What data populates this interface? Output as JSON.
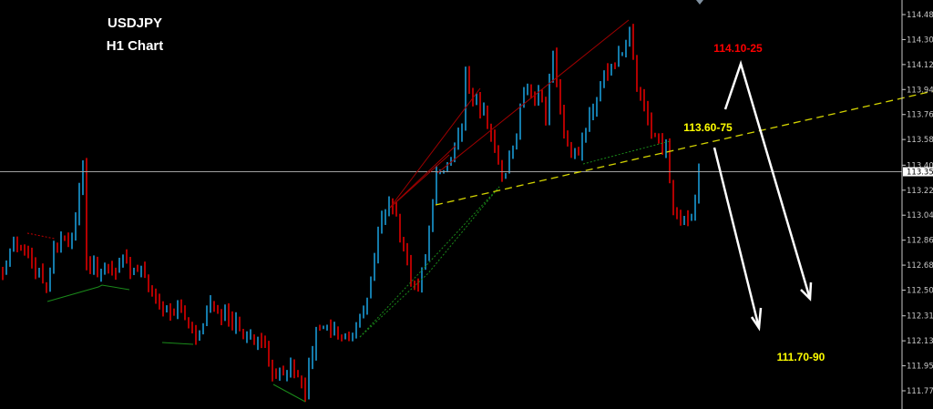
{
  "chart_data": {
    "type": "candlestick",
    "title": "USDJPY",
    "subtitle": "H1 Chart",
    "symbol": "USDJPY",
    "timeframe": "H1",
    "ylim": [
      111.7,
      114.55
    ],
    "y_ticks": [
      "114.485",
      "114.305",
      "114.125",
      "113.945",
      "113.765",
      "113.585",
      "113.400",
      "113.220",
      "113.040",
      "112.860",
      "112.680",
      "112.500",
      "112.315",
      "112.135",
      "111.955",
      "111.775"
    ],
    "current_price": "113.353",
    "bar_count": 192,
    "key_closes": [
      [
        0,
        112.62
      ],
      [
        3,
        112.88
      ],
      [
        7,
        112.75
      ],
      [
        12,
        112.49
      ],
      [
        14,
        112.82
      ],
      [
        18,
        112.85
      ],
      [
        20,
        113.02
      ],
      [
        22,
        113.41
      ],
      [
        23,
        112.69
      ],
      [
        27,
        112.65
      ],
      [
        32,
        112.69
      ],
      [
        37,
        112.65
      ],
      [
        39,
        112.59
      ],
      [
        42,
        112.42
      ],
      [
        44,
        112.36
      ],
      [
        49,
        112.36
      ],
      [
        53,
        112.16
      ],
      [
        57,
        112.42
      ],
      [
        62,
        112.29
      ],
      [
        67,
        112.16
      ],
      [
        72,
        112.1
      ],
      [
        74,
        111.9
      ],
      [
        79,
        111.97
      ],
      [
        83,
        111.74
      ],
      [
        86,
        112.23
      ],
      [
        89,
        112.23
      ],
      [
        93,
        112.16
      ],
      [
        97,
        112.23
      ],
      [
        99,
        112.36
      ],
      [
        102,
        112.75
      ],
      [
        104,
        113.02
      ],
      [
        107,
        113.08
      ],
      [
        109,
        112.88
      ],
      [
        112,
        112.56
      ],
      [
        114,
        112.49
      ],
      [
        117,
        112.95
      ],
      [
        119,
        113.34
      ],
      [
        123,
        113.44
      ],
      [
        126,
        113.67
      ],
      [
        127,
        114.07
      ],
      [
        129,
        113.87
      ],
      [
        132,
        113.8
      ],
      [
        136,
        113.41
      ],
      [
        138,
        113.34
      ],
      [
        141,
        113.61
      ],
      [
        143,
        113.93
      ],
      [
        147,
        113.93
      ],
      [
        149,
        113.74
      ],
      [
        151,
        114.2
      ],
      [
        153,
        113.8
      ],
      [
        155,
        113.54
      ],
      [
        158,
        113.47
      ],
      [
        162,
        113.8
      ],
      [
        164,
        114.0
      ],
      [
        167,
        114.13
      ],
      [
        169,
        114.2
      ],
      [
        172,
        114.39
      ],
      [
        174,
        113.93
      ],
      [
        177,
        113.74
      ],
      [
        179,
        113.61
      ],
      [
        182,
        113.54
      ],
      [
        184,
        113.08
      ],
      [
        187,
        113.02
      ],
      [
        189,
        113.05
      ],
      [
        191,
        113.353
      ]
    ],
    "annotations": {
      "target_high": "114.10-25",
      "resistance": "113.60-75",
      "target_low": "111.70-90"
    },
    "colors": {
      "up": "#1a9ad6",
      "down": "#e00000",
      "trendline": "#d4d400",
      "annotation_high": "#ff0000",
      "annotation_level": "#ffff00",
      "arrows": "#ffffff",
      "background": "#000000",
      "price_line": "#a0a0a0"
    }
  }
}
